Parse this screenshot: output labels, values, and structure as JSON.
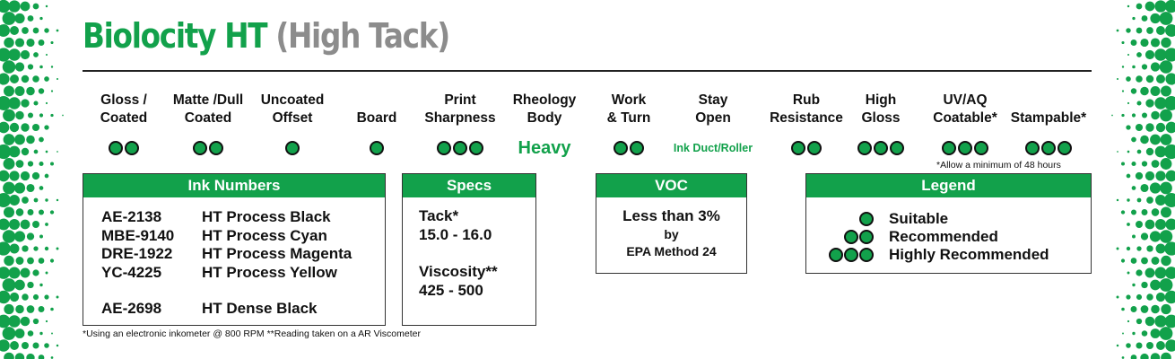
{
  "title": {
    "main": "Biolocity HT",
    "sub": "(High Tack)"
  },
  "properties": [
    {
      "line1": "Gloss /",
      "line2": "Coated",
      "dots": 2
    },
    {
      "line1": "Matte /Dull",
      "line2": "Coated",
      "dots": 2
    },
    {
      "line1": "Uncoated",
      "line2": "Offset",
      "dots": 1
    },
    {
      "line1": "",
      "line2": "Board",
      "dots": 1
    },
    {
      "line1": "Print",
      "line2": "Sharpness",
      "dots": 3
    },
    {
      "line1": "Rheology",
      "line2": "Body",
      "dots": 0,
      "text": "Heavy"
    },
    {
      "line1": "Work",
      "line2": "& Turn",
      "dots": 2
    },
    {
      "line1": "Stay",
      "line2": "Open",
      "dots": 0,
      "text": "Ink Duct/Roller"
    },
    {
      "line1": "Rub",
      "line2": "Resistance",
      "dots": 2
    },
    {
      "line1": "High",
      "line2": "Gloss",
      "dots": 3
    },
    {
      "line1": "UV/AQ",
      "line2": "Coatable*",
      "dots": 3
    },
    {
      "line1": "",
      "line2": "Stampable*",
      "dots": 3
    }
  ],
  "allow_note": "*Allow a minimum of 48 hours",
  "ink_numbers": {
    "heading": "Ink Numbers",
    "rows": [
      {
        "code": "AE-2138",
        "name": "HT Process Black"
      },
      {
        "code": "MBE-9140",
        "name": "HT Process Cyan"
      },
      {
        "code": "DRE-1922",
        "name": "HT Process Magenta"
      },
      {
        "code": "YC-4225",
        "name": "HT Process Yellow"
      },
      {
        "code": "AE-2698",
        "name": "HT Dense Black"
      }
    ]
  },
  "specs": {
    "heading": "Specs",
    "tack_label": "Tack*",
    "tack_value": "15.0 - 16.0",
    "viscosity_label": "Viscosity**",
    "viscosity_value": "425 - 500"
  },
  "voc": {
    "heading": "VOC",
    "main": "Less than 3%",
    "by": "by",
    "method": "EPA Method 24"
  },
  "legend": {
    "heading": "Legend",
    "items": [
      {
        "dots": 1,
        "label": "Suitable"
      },
      {
        "dots": 2,
        "label": "Recommended"
      },
      {
        "dots": 3,
        "label": "Highly Recommended"
      }
    ]
  },
  "footnote": "*Using an electronic inkometer @ 800 RPM  **Reading taken on a AR Viscometer",
  "colors": {
    "brand_green": "#12a14b",
    "title_grey": "#8c8c8c"
  }
}
